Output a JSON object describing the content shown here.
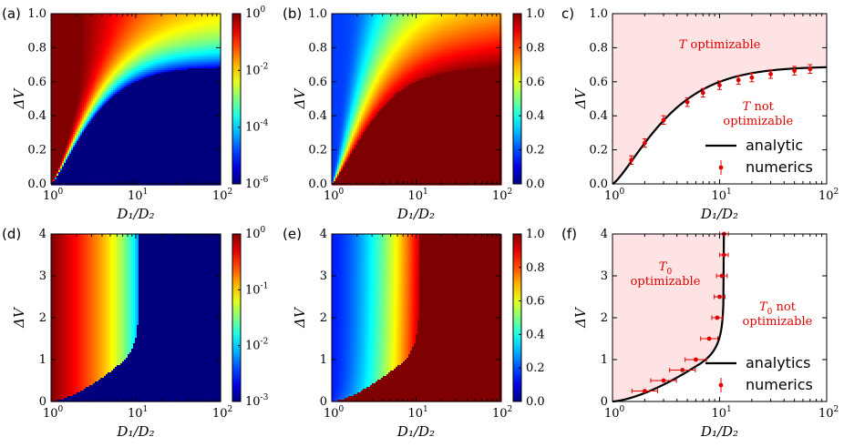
{
  "chart_data": [
    {
      "id": "a",
      "panel_label": "(a)",
      "type": "heatmap",
      "xlabel": "D₁/D₂",
      "ylabel": "ΔV",
      "xscale": "log",
      "xlim": [
        1,
        100
      ],
      "ylim": [
        0,
        1
      ],
      "xticks": [
        {
          "v": 1,
          "b": "10",
          "e": "0"
        },
        {
          "v": 10,
          "b": "10",
          "e": "1"
        },
        {
          "v": 100,
          "b": "10",
          "e": "2"
        }
      ],
      "yticks": [
        "0.0",
        "0.2",
        "0.4",
        "0.6",
        "0.8",
        "1.0"
      ],
      "colormap": "jet",
      "colorscale": "log",
      "colorbar_ticks": [
        {
          "b": "10",
          "e": "0"
        },
        {
          "b": "10",
          "e": "-2"
        },
        {
          "b": "10",
          "e": "-4"
        },
        {
          "b": "10",
          "e": "-6"
        }
      ],
      "boundary": "analytic-a"
    },
    {
      "id": "b",
      "panel_label": "(b)",
      "type": "heatmap",
      "xlabel": "D₁/D₂",
      "ylabel": "ΔV",
      "xscale": "log",
      "xlim": [
        1,
        100
      ],
      "ylim": [
        0,
        1
      ],
      "xticks": [
        {
          "v": 1,
          "b": "10",
          "e": "0"
        },
        {
          "v": 10,
          "b": "10",
          "e": "1"
        },
        {
          "v": 100,
          "b": "10",
          "e": "2"
        }
      ],
      "yticks": [
        "0.0",
        "0.2",
        "0.4",
        "0.6",
        "0.8",
        "1.0"
      ],
      "colormap": "jet",
      "colorscale": "linear",
      "colorbar_ticks": [
        "1.0",
        "0.8",
        "0.6",
        "0.4",
        "0.2",
        "0.0"
      ],
      "boundary": "analytic-a"
    },
    {
      "id": "c",
      "panel_label": "c)",
      "type": "line",
      "xlabel": "D₁/D₂",
      "ylabel": "ΔV",
      "xscale": "log",
      "xlim": [
        1,
        100
      ],
      "ylim": [
        0,
        1
      ],
      "xticks": [
        {
          "v": 1,
          "b": "10",
          "e": "0"
        },
        {
          "v": 10,
          "b": "10",
          "e": "1"
        },
        {
          "v": 100,
          "b": "10",
          "e": "2"
        }
      ],
      "yticks": [
        "0.0",
        "0.2",
        "0.4",
        "0.6",
        "0.8",
        "1.0"
      ],
      "regions": [
        {
          "sym": "T",
          "text": " optimizable"
        },
        {
          "sym": "T",
          "text": " not",
          "line2": "optimizable"
        }
      ],
      "legend": {
        "position": "bottom-right",
        "entries": [
          "analytic",
          "numerics"
        ]
      },
      "numerics": [
        {
          "x": 1.5,
          "y": 0.14,
          "err": 0.025
        },
        {
          "x": 2.0,
          "y": 0.24,
          "err": 0.025
        },
        {
          "x": 3.0,
          "y": 0.375,
          "err": 0.025
        },
        {
          "x": 5.0,
          "y": 0.48,
          "err": 0.025
        },
        {
          "x": 7.0,
          "y": 0.535,
          "err": 0.025
        },
        {
          "x": 10.0,
          "y": 0.58,
          "err": 0.025
        },
        {
          "x": 15.0,
          "y": 0.61,
          "err": 0.025
        },
        {
          "x": 20.0,
          "y": 0.625,
          "err": 0.025
        },
        {
          "x": 30.0,
          "y": 0.645,
          "err": 0.025
        },
        {
          "x": 50.0,
          "y": 0.665,
          "err": 0.025
        },
        {
          "x": 70.0,
          "y": 0.675,
          "err": 0.025
        }
      ]
    },
    {
      "id": "d",
      "panel_label": "(d)",
      "type": "heatmap",
      "xlabel": "D₁/D₂",
      "ylabel": "ΔV",
      "xscale": "log",
      "xlim": [
        1,
        100
      ],
      "ylim": [
        0,
        4
      ],
      "xticks": [
        {
          "v": 1,
          "b": "10",
          "e": "0"
        },
        {
          "v": 10,
          "b": "10",
          "e": "1"
        },
        {
          "v": 100,
          "b": "10",
          "e": "2"
        }
      ],
      "yticks": [
        "0",
        "1",
        "2",
        "3",
        "4"
      ],
      "colormap": "jet",
      "colorscale": "log",
      "colorbar_ticks": [
        {
          "b": "10",
          "e": "0"
        },
        {
          "b": "10",
          "e": "-1"
        },
        {
          "b": "10",
          "e": "-2"
        },
        {
          "b": "10",
          "e": "-3"
        }
      ],
      "boundary": "analytic-d"
    },
    {
      "id": "e",
      "panel_label": "(e)",
      "type": "heatmap",
      "xlabel": "D₁/D₂",
      "ylabel": "ΔV",
      "xscale": "log",
      "xlim": [
        1,
        100
      ],
      "ylim": [
        0,
        4
      ],
      "xticks": [
        {
          "v": 1,
          "b": "10",
          "e": "0"
        },
        {
          "v": 10,
          "b": "10",
          "e": "1"
        },
        {
          "v": 100,
          "b": "10",
          "e": "2"
        }
      ],
      "yticks": [
        "0",
        "1",
        "2",
        "3",
        "4"
      ],
      "colormap": "jet",
      "colorscale": "linear",
      "colorbar_ticks": [
        "1.0",
        "0.8",
        "0.6",
        "0.4",
        "0.2",
        "0.0"
      ],
      "boundary": "analytic-d"
    },
    {
      "id": "f",
      "panel_label": "(f)",
      "type": "line",
      "xlabel": "D₁/D₂",
      "ylabel": "ΔV",
      "xscale": "log",
      "xlim": [
        1,
        100
      ],
      "ylim": [
        0,
        4
      ],
      "xticks": [
        {
          "v": 1,
          "b": "10",
          "e": "0"
        },
        {
          "v": 10,
          "b": "10",
          "e": "1"
        },
        {
          "v": 100,
          "b": "10",
          "e": "2"
        }
      ],
      "yticks": [
        "0",
        "1",
        "2",
        "3",
        "4"
      ],
      "regions": [
        {
          "sym": "T",
          "sub": "0",
          "text": "",
          "line2": "optimizable"
        },
        {
          "sym": "T",
          "sub": "0",
          "text": " not",
          "line2": "optimizable"
        }
      ],
      "legend": {
        "position": "bottom-right",
        "entries": [
          "analytics",
          "numerics"
        ]
      },
      "numerics": [
        {
          "x": 2.0,
          "y": 0.25,
          "xerr": 0.12
        },
        {
          "x": 3.0,
          "y": 0.5,
          "xerr": 0.12
        },
        {
          "x": 4.5,
          "y": 0.75,
          "xerr": 0.12
        },
        {
          "x": 6.0,
          "y": 1.0,
          "xerr": 0.1
        },
        {
          "x": 8.0,
          "y": 1.5,
          "xerr": 0.08
        },
        {
          "x": 9.5,
          "y": 2.0,
          "xerr": 0.05
        },
        {
          "x": 10.0,
          "y": 2.5,
          "xerr": 0.05
        },
        {
          "x": 10.5,
          "y": 3.0,
          "xerr": 0.05
        },
        {
          "x": 11.0,
          "y": 3.5,
          "xerr": 0.04
        },
        {
          "x": 11.0,
          "y": 4.0,
          "xerr": 0.04
        }
      ]
    }
  ],
  "colors": {
    "region_fill": "#fde3e3",
    "numerics": "#e00000",
    "analytic": "#000000",
    "jet_low": "#00007f",
    "jet_high": "#7f0000"
  }
}
